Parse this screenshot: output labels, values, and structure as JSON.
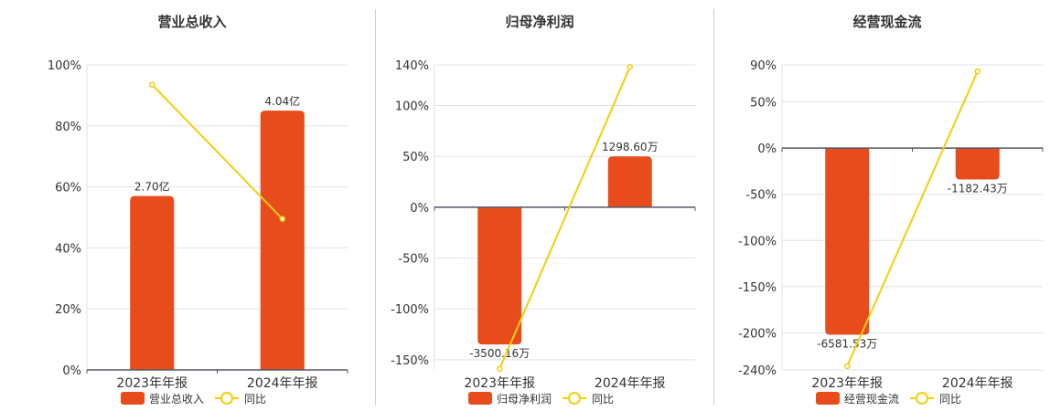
{
  "colors": {
    "bar": "#e84c1d",
    "line": "#f2cf0a",
    "grid": "#dde3ee",
    "axis": "#333333",
    "text": "#333333"
  },
  "chart_data": [
    {
      "type": "bar",
      "title": "营业总收入",
      "categories": [
        "2023年年报",
        "2024年年报"
      ],
      "ylim": [
        0,
        100
      ],
      "yticks": [
        0,
        20,
        40,
        60,
        80,
        100
      ],
      "ytick_labels": [
        "0%",
        "20%",
        "40%",
        "60%",
        "80%",
        "100%"
      ],
      "series": [
        {
          "name": "营业总收入",
          "kind": "bar",
          "values": [
            57,
            85
          ],
          "data_labels": [
            "2.70亿",
            "4.04亿"
          ]
        },
        {
          "name": "同比",
          "kind": "line",
          "values": [
            93.5,
            49.5
          ]
        }
      ],
      "grid": true,
      "legend": "bottom"
    },
    {
      "type": "bar",
      "title": "归母净利润",
      "categories": [
        "2023年年报",
        "2024年年报"
      ],
      "ylim": [
        -160,
        140
      ],
      "yticks": [
        -150,
        -100,
        -50,
        0,
        50,
        100,
        140
      ],
      "ytick_labels": [
        "-150%",
        "-100%",
        "-50%",
        "0%",
        "50%",
        "100%",
        "140%"
      ],
      "series": [
        {
          "name": "归母净利润",
          "kind": "bar",
          "values": [
            -135,
            50
          ],
          "data_labels": [
            "-3500.16万",
            "1298.60万"
          ]
        },
        {
          "name": "同比",
          "kind": "line",
          "values": [
            -159,
            138
          ]
        }
      ],
      "grid": true,
      "legend": "bottom"
    },
    {
      "type": "bar",
      "title": "经营现金流",
      "categories": [
        "2023年年报",
        "2024年年报"
      ],
      "ylim": [
        -240,
        90
      ],
      "yticks": [
        -240,
        -200,
        -150,
        -100,
        -50,
        0,
        50,
        90
      ],
      "ytick_labels": [
        "-240%",
        "-200%",
        "-150%",
        "-100%",
        "-50%",
        "0%",
        "50%",
        "90%"
      ],
      "series": [
        {
          "name": "经营现金流",
          "kind": "bar",
          "values": [
            -202,
            -34
          ],
          "data_labels": [
            "-6581.53万",
            "-1182.43万"
          ]
        },
        {
          "name": "同比",
          "kind": "line",
          "values": [
            -236,
            83
          ]
        }
      ],
      "grid": true,
      "legend": "bottom"
    }
  ]
}
